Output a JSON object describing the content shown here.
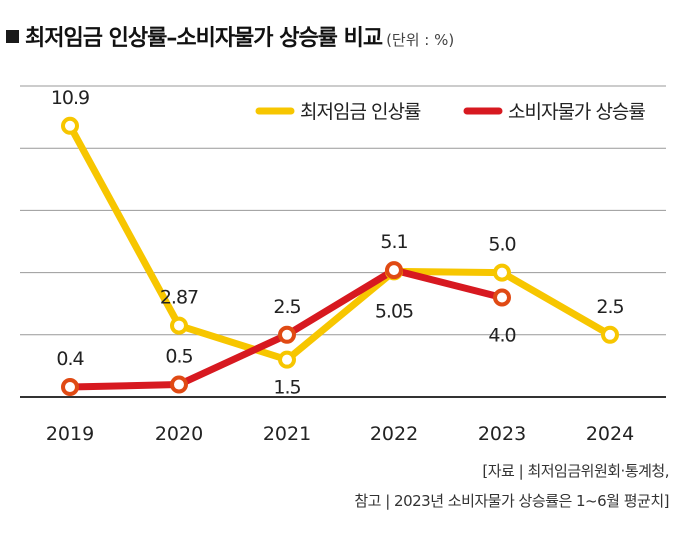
{
  "title": "최저임금 인상률–소비자물가 상승률 비교",
  "unit": "(단위 : %)",
  "source_line1": "[자료 | 최저임금위원회·통계청,",
  "source_line2": "참고 | 2023년 소비자물가 상승률은 1~6월 평균치]",
  "colors": {
    "min_wage": "#f7c600",
    "cpi": "#d71920",
    "axis": "#333333",
    "grid": "#999999"
  },
  "chart_data": {
    "type": "line",
    "title": "최저임금 인상률–소비자물가 상승률 비교",
    "xlabel": "",
    "ylabel": "",
    "ylim": [
      0,
      12.5
    ],
    "grid": true,
    "legend_position": "top-right",
    "categories": [
      "2019",
      "2020",
      "2021",
      "2022",
      "2023",
      "2024"
    ],
    "series": [
      {
        "name": "최저임금 인상률",
        "values": [
          10.9,
          2.87,
          1.5,
          5.05,
          5.0,
          2.5
        ],
        "labels": [
          "10.9",
          "2.87",
          "1.5",
          "5.05",
          "5.0",
          "2.5"
        ]
      },
      {
        "name": "소비자물가 상승률",
        "values": [
          0.4,
          0.5,
          2.5,
          5.1,
          4.0,
          null
        ],
        "labels": [
          "0.4",
          "0.5",
          "2.5",
          "5.1",
          "4.0",
          ""
        ]
      }
    ]
  }
}
